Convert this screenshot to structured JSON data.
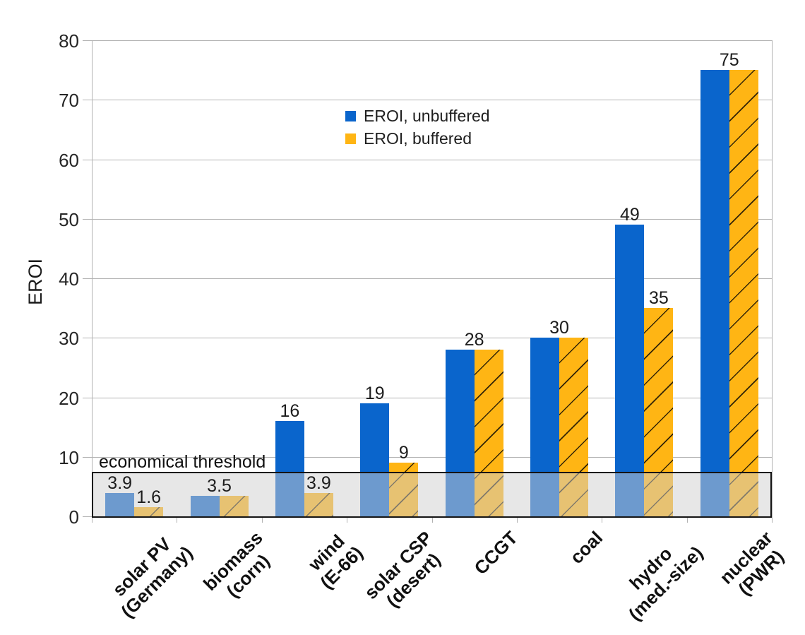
{
  "chart_data": {
    "type": "bar",
    "title": "",
    "ylabel": "EROI",
    "ylim": [
      0,
      80
    ],
    "yticks": [
      0,
      10,
      20,
      30,
      40,
      50,
      60,
      70,
      80
    ],
    "grid": true,
    "legend_position": "inside-top-center",
    "series_colors": {
      "unbuffered": "#0a65cc",
      "buffered": "#ffb514"
    },
    "hatch_color": "#1a1a1a",
    "gridline_color": "#b2b2b2",
    "threshold": {
      "label": "economical threshold",
      "value": 7.5
    },
    "legend": [
      {
        "name": "EROI, unbuffered",
        "color": "#0a65cc",
        "hatched": false
      },
      {
        "name": "EROI, buffered",
        "color": "#ffb514",
        "hatched": true
      }
    ],
    "categories": [
      {
        "label_lines": [
          "solar PV",
          "(Germany)"
        ],
        "unbuffered": 3.9,
        "buffered": 1.6,
        "labels": [
          {
            "text": "3.9",
            "anchor": "unbuffered"
          },
          {
            "text": "1.6",
            "anchor": "buffered"
          }
        ]
      },
      {
        "label_lines": [
          "biomass",
          "(corn)"
        ],
        "unbuffered": 3.5,
        "buffered": 3.5,
        "labels": [
          {
            "text": "3.5",
            "anchor": "pair"
          }
        ]
      },
      {
        "label_lines": [
          "wind",
          "(E-66)"
        ],
        "unbuffered": 16,
        "buffered": 3.9,
        "labels": [
          {
            "text": "16",
            "anchor": "unbuffered"
          },
          {
            "text": "3.9",
            "anchor": "buffered"
          }
        ]
      },
      {
        "label_lines": [
          "solar CSP",
          "(desert)"
        ],
        "unbuffered": 19,
        "buffered": 9,
        "labels": [
          {
            "text": "19",
            "anchor": "unbuffered"
          },
          {
            "text": "9",
            "anchor": "buffered"
          }
        ]
      },
      {
        "label_lines": [
          "CCGT"
        ],
        "unbuffered": 28,
        "buffered": 28,
        "labels": [
          {
            "text": "28",
            "anchor": "pair"
          }
        ]
      },
      {
        "label_lines": [
          "coal"
        ],
        "unbuffered": 30,
        "buffered": 30,
        "labels": [
          {
            "text": "30",
            "anchor": "pair"
          }
        ]
      },
      {
        "label_lines": [
          "hydro",
          "(med.-size)"
        ],
        "unbuffered": 49,
        "buffered": 35,
        "labels": [
          {
            "text": "49",
            "anchor": "unbuffered"
          },
          {
            "text": "35",
            "anchor": "buffered"
          }
        ]
      },
      {
        "label_lines": [
          "nuclear",
          "(PWR)"
        ],
        "unbuffered": 75,
        "buffered": 75,
        "labels": [
          {
            "text": "75",
            "anchor": "pair"
          }
        ]
      }
    ]
  }
}
